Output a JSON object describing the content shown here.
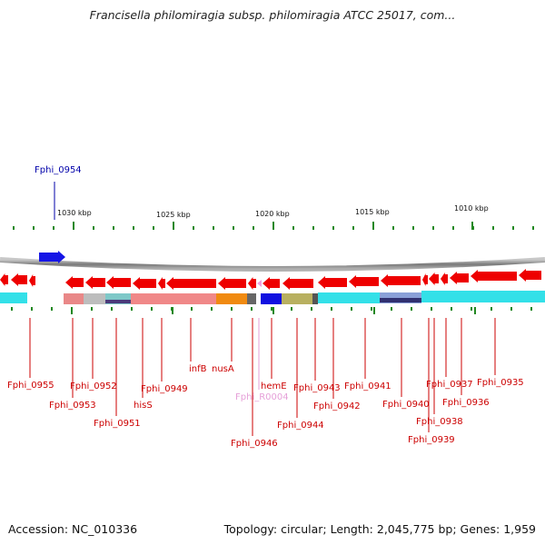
{
  "title": "Francisella philomiragia subsp. philomiragia ATCC 25017, com...",
  "footer": {
    "accession": "Accession: NC_010336",
    "topology": "Topology: circular; Length: 2,045,775 bp; Genes: 1,959"
  },
  "colors": {
    "forward_gene": "#1515e6",
    "reverse_gene": "#ee0000",
    "gene_label": "#cc0000",
    "forward_label": "#0000aa",
    "rna_label": "#e6a0d8",
    "tick": "#228822",
    "backbone": "#8a8a8a",
    "cog_cyan": "#33e0e8"
  },
  "scale_labels": [
    "1030 kbp",
    "1025 kbp",
    "1020 kbp",
    "1015 kbp",
    "1010 kbp"
  ],
  "forward_labels": [
    {
      "name": "Fphi_0954"
    }
  ],
  "reverse_labels": [
    {
      "name": "Fphi_0955"
    },
    {
      "name": "Fphi_0953"
    },
    {
      "name": "Fphi_0952"
    },
    {
      "name": "Fphi_0951"
    },
    {
      "name": "hisS"
    },
    {
      "name": "Fphi_0949"
    },
    {
      "name": "infB"
    },
    {
      "name": "nusA"
    },
    {
      "name": "Fphi_0946"
    },
    {
      "name": "Fphi_R0004"
    },
    {
      "name": "hemE"
    },
    {
      "name": "Fphi_0944"
    },
    {
      "name": "Fphi_0943"
    },
    {
      "name": "Fphi_0942"
    },
    {
      "name": "Fphi_0941"
    },
    {
      "name": "Fphi_0940"
    },
    {
      "name": "Fphi_0939"
    },
    {
      "name": "Fphi_0938"
    },
    {
      "name": "Fphi_0937"
    },
    {
      "name": "Fphi_0936"
    },
    {
      "name": "Fphi_0935"
    }
  ]
}
